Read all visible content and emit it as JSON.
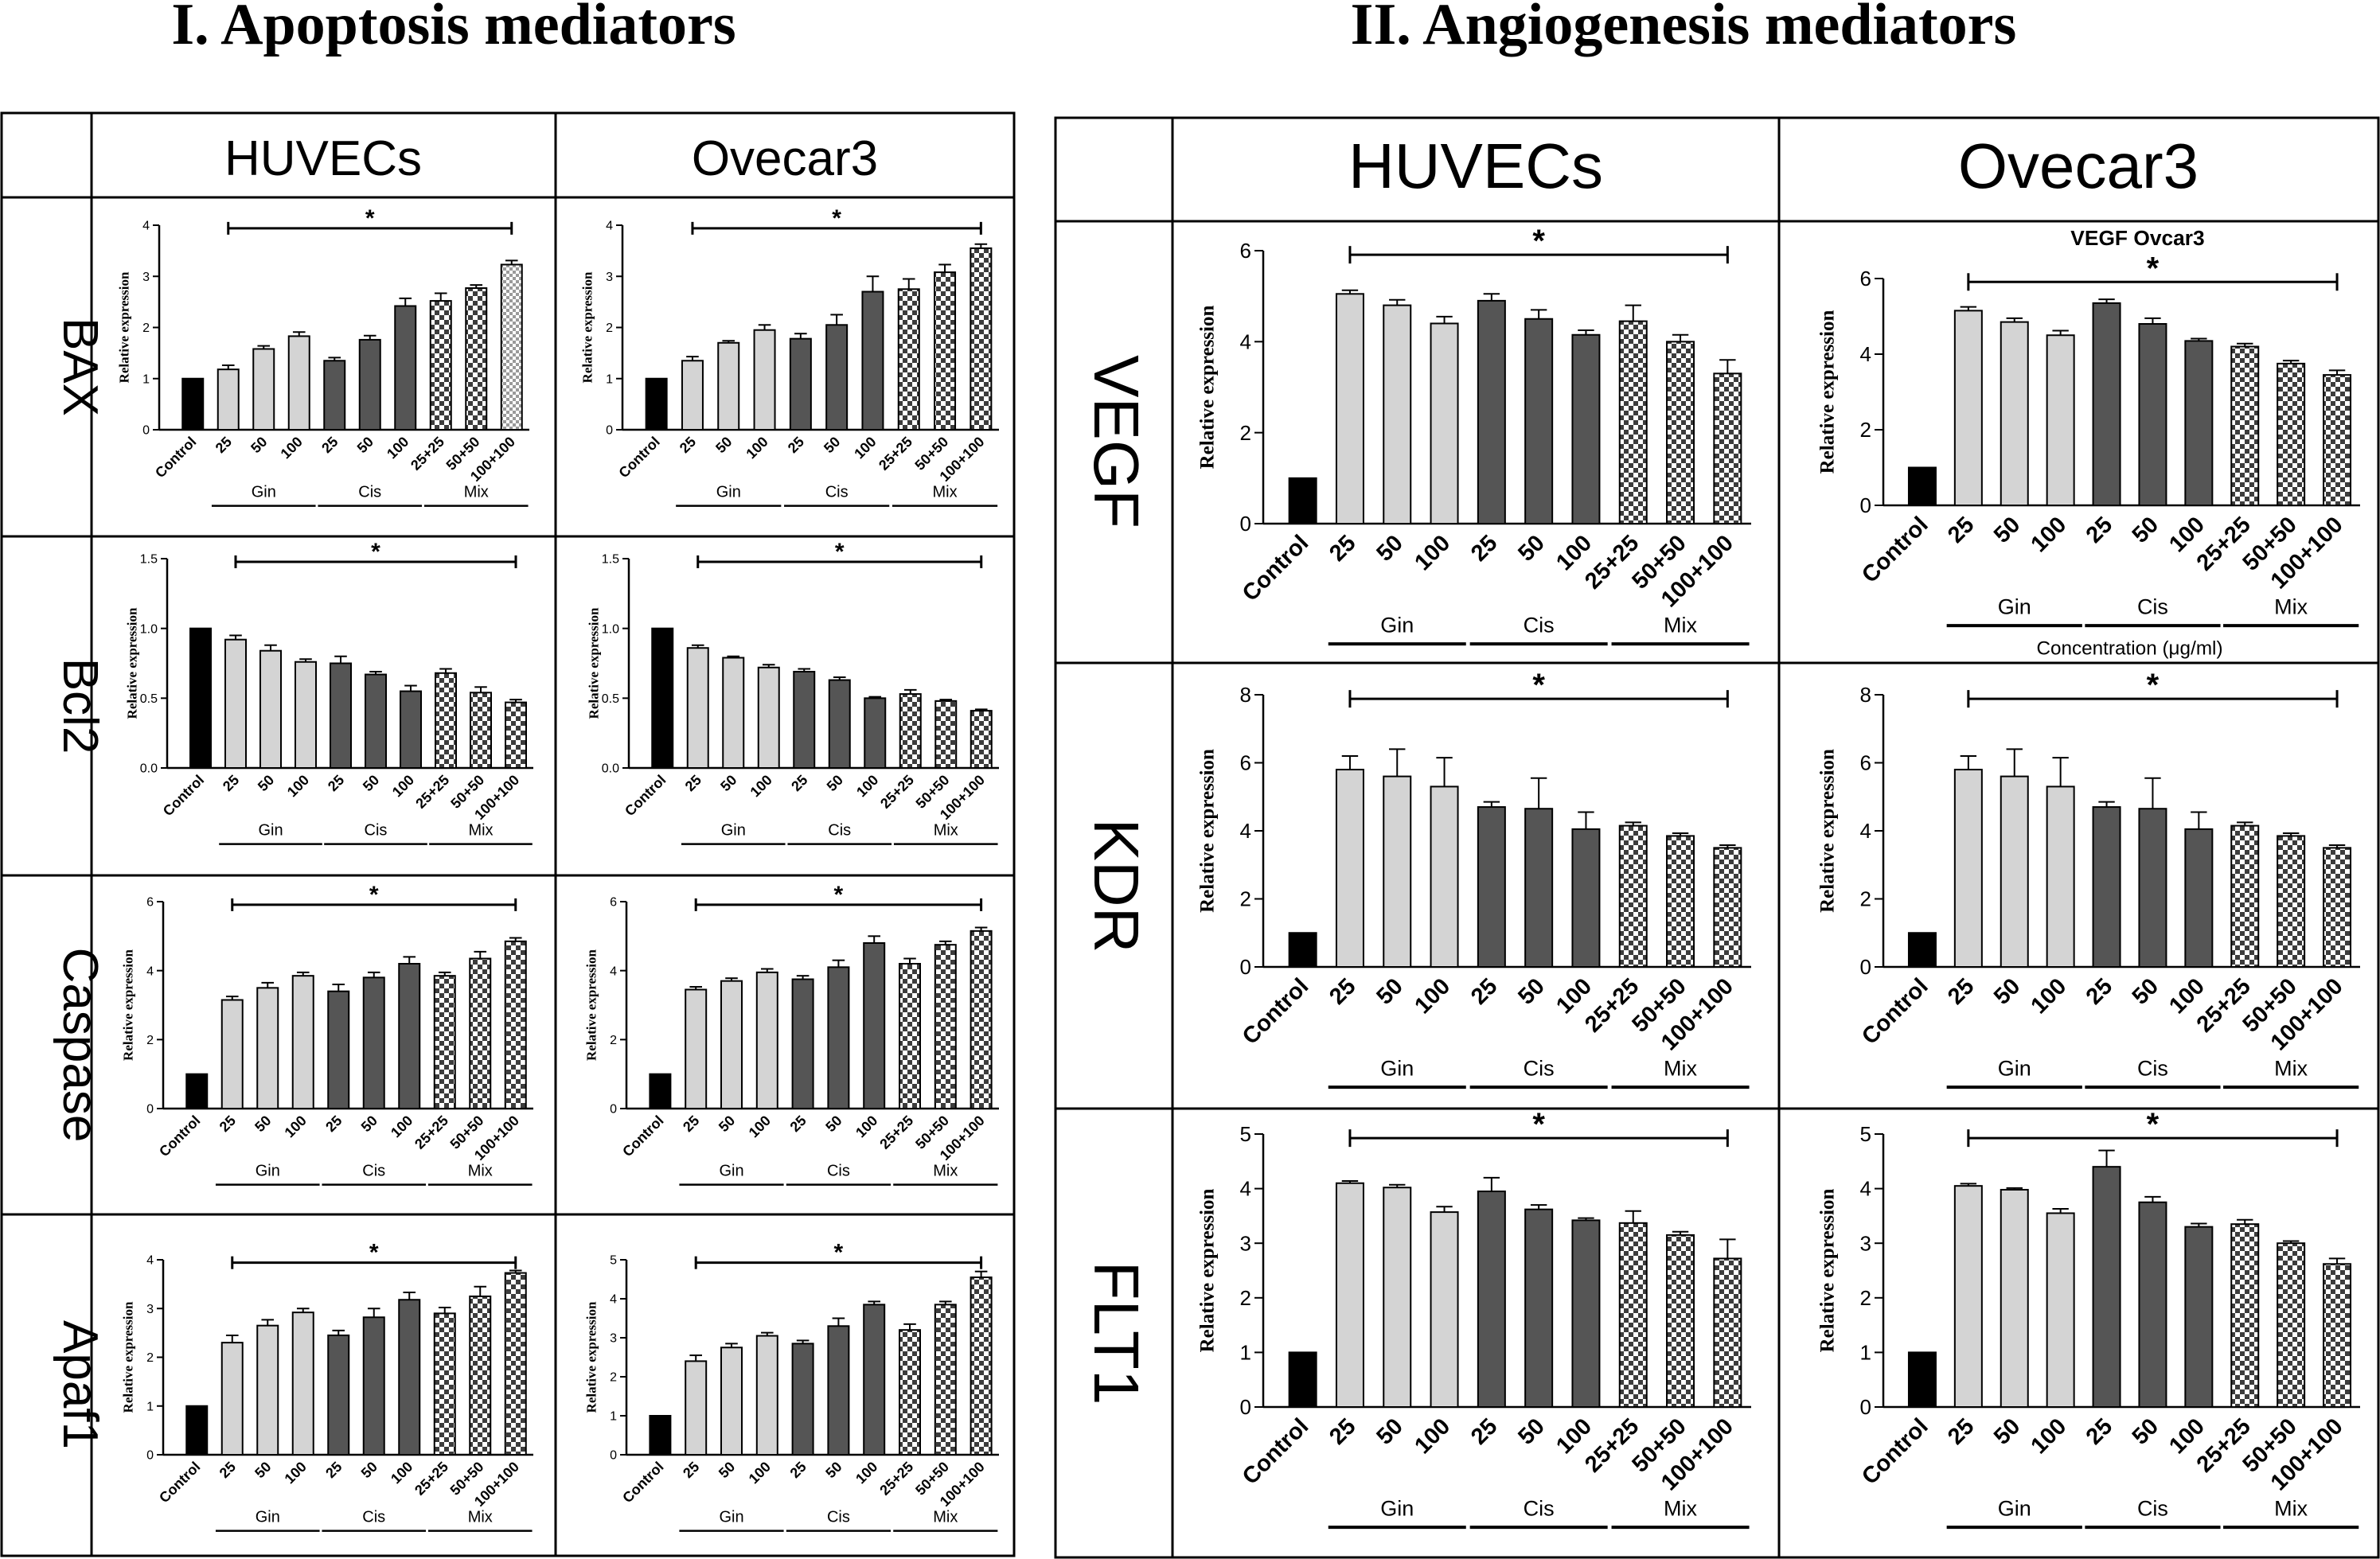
{
  "titles": {
    "left": "I. Apoptosis mediators",
    "right": "II. Angiogenesis mediators"
  },
  "left_table": {
    "col_headers": [
      "HUVECs",
      "Ovecar3"
    ],
    "row_labels": [
      "BAX",
      "Bcl2",
      "Caspase",
      "Apaf1"
    ]
  },
  "right_table": {
    "col_headers": [
      "HUVECs",
      "Ovecar3"
    ],
    "row_labels": [
      "VEGF",
      "KDR",
      "FLT1"
    ]
  },
  "colors": {
    "control": "#000000",
    "gin": "#d4d4d4",
    "cis": "#555555",
    "mix_dark": "#3c3c3c",
    "mix_light": "#ffffff"
  },
  "chart_data": [
    {
      "id": "bax_huvec",
      "type": "bar",
      "ylabel": "Relative expression",
      "ylim": [
        0,
        4
      ],
      "yticks": [
        "0",
        "1",
        "2",
        "3",
        "4"
      ],
      "categories": [
        "Control",
        "25",
        "50",
        "100",
        "25",
        "50",
        "100",
        "25+25",
        "50+50",
        "100+100"
      ],
      "groups": [
        "Gin",
        "Cis",
        "Mix"
      ],
      "significance": "*",
      "values": [
        1.0,
        1.18,
        1.58,
        1.83,
        1.35,
        1.76,
        2.42,
        2.52,
        2.77,
        3.23
      ],
      "errors": [
        0,
        0.08,
        0.06,
        0.08,
        0.06,
        0.08,
        0.15,
        0.15,
        0.06,
        0.08
      ]
    },
    {
      "id": "bax_ovecar",
      "type": "bar",
      "ylabel": "Relative expression",
      "ylim": [
        0,
        4
      ],
      "yticks": [
        "0",
        "1",
        "2",
        "3",
        "4"
      ],
      "categories": [
        "Control",
        "25",
        "50",
        "100",
        "25",
        "50",
        "100",
        "25+25",
        "50+50",
        "100+100"
      ],
      "groups": [
        "Gin",
        "Cis",
        "Mix"
      ],
      "significance": "*",
      "values": [
        1.0,
        1.35,
        1.7,
        1.95,
        1.78,
        2.05,
        2.7,
        2.75,
        3.08,
        3.55
      ],
      "errors": [
        0,
        0.08,
        0.04,
        0.1,
        0.1,
        0.2,
        0.3,
        0.2,
        0.15,
        0.08
      ]
    },
    {
      "id": "bcl2_huvec",
      "type": "bar",
      "ylabel": "Relative expression",
      "ylim": [
        0,
        1.5
      ],
      "yticks": [
        "0.0",
        "0.5",
        "1.0",
        "1.5"
      ],
      "categories": [
        "Control",
        "25",
        "50",
        "100",
        "25",
        "50",
        "100",
        "25+25",
        "50+50",
        "100+100"
      ],
      "groups": [
        "Gin",
        "Cis",
        "Mix"
      ],
      "significance": "*",
      "values": [
        1.0,
        0.92,
        0.84,
        0.76,
        0.75,
        0.67,
        0.55,
        0.68,
        0.54,
        0.47
      ],
      "errors": [
        0,
        0.03,
        0.04,
        0.02,
        0.05,
        0.02,
        0.04,
        0.03,
        0.04,
        0.02
      ]
    },
    {
      "id": "bcl2_ovecar",
      "type": "bar",
      "ylabel": "Relative expression",
      "ylim": [
        0,
        1.5
      ],
      "yticks": [
        "0.0",
        "0.5",
        "1.0",
        "1.5"
      ],
      "categories": [
        "Control",
        "25",
        "50",
        "100",
        "25",
        "50",
        "100",
        "25+25",
        "50+50",
        "100+100"
      ],
      "groups": [
        "Gin",
        "Cis",
        "Mix"
      ],
      "significance": "*",
      "values": [
        1.0,
        0.86,
        0.79,
        0.72,
        0.69,
        0.63,
        0.5,
        0.53,
        0.48,
        0.41
      ],
      "errors": [
        0,
        0.02,
        0.01,
        0.02,
        0.02,
        0.02,
        0.01,
        0.03,
        0.01,
        0.01
      ]
    },
    {
      "id": "casp_huvec",
      "type": "bar",
      "ylabel": "Relative expression",
      "ylim": [
        0,
        6
      ],
      "yticks": [
        "0",
        "2",
        "4",
        "6"
      ],
      "categories": [
        "Control",
        "25",
        "50",
        "100",
        "25",
        "50",
        "100",
        "25+25",
        "50+50",
        "100+100"
      ],
      "groups": [
        "Gin",
        "Cis",
        "Mix"
      ],
      "significance": "*",
      "values": [
        1.0,
        3.15,
        3.5,
        3.85,
        3.4,
        3.8,
        4.2,
        3.85,
        4.35,
        4.85
      ],
      "errors": [
        0,
        0.1,
        0.15,
        0.1,
        0.2,
        0.15,
        0.2,
        0.1,
        0.2,
        0.1
      ]
    },
    {
      "id": "casp_ovecar",
      "type": "bar",
      "ylabel": "Relative expression",
      "ylim": [
        0,
        6
      ],
      "yticks": [
        "0",
        "2",
        "4",
        "6"
      ],
      "categories": [
        "Control",
        "25",
        "50",
        "100",
        "25",
        "50",
        "100",
        "25+25",
        "50+50",
        "100+100"
      ],
      "groups": [
        "Gin",
        "Cis",
        "Mix"
      ],
      "significance": "*",
      "values": [
        1.0,
        3.45,
        3.7,
        3.95,
        3.75,
        4.1,
        4.8,
        4.2,
        4.75,
        5.15
      ],
      "errors": [
        0,
        0.08,
        0.08,
        0.1,
        0.1,
        0.2,
        0.2,
        0.15,
        0.1,
        0.1
      ]
    },
    {
      "id": "apaf_huvec",
      "type": "bar",
      "ylabel": "Relative expression",
      "ylim": [
        0,
        4
      ],
      "yticks": [
        "0",
        "1",
        "2",
        "3",
        "4"
      ],
      "categories": [
        "Control",
        "25",
        "50",
        "100",
        "25",
        "50",
        "100",
        "25+25",
        "50+50",
        "100+100"
      ],
      "groups": [
        "Gin",
        "Cis",
        "Mix"
      ],
      "significance": "*",
      "values": [
        1.0,
        2.3,
        2.65,
        2.92,
        2.45,
        2.82,
        3.18,
        2.9,
        3.25,
        3.73
      ],
      "errors": [
        0,
        0.15,
        0.12,
        0.08,
        0.1,
        0.18,
        0.15,
        0.12,
        0.2,
        0.05
      ]
    },
    {
      "id": "apaf_ovecar",
      "type": "bar",
      "ylabel": "Relative expression",
      "ylim": [
        0,
        5
      ],
      "yticks": [
        "0",
        "1",
        "2",
        "3",
        "4",
        "5"
      ],
      "categories": [
        "Control",
        "25",
        "50",
        "100",
        "25",
        "50",
        "100",
        "25+25",
        "50+50",
        "100+100"
      ],
      "groups": [
        "Gin",
        "Cis",
        "Mix"
      ],
      "significance": "*",
      "values": [
        1.0,
        2.4,
        2.75,
        3.05,
        2.85,
        3.3,
        3.85,
        3.2,
        3.85,
        4.55
      ],
      "errors": [
        0,
        0.15,
        0.1,
        0.08,
        0.08,
        0.2,
        0.08,
        0.15,
        0.08,
        0.15
      ]
    },
    {
      "id": "vegf_huvec",
      "type": "bar",
      "ylabel": "Relative expression",
      "ylim": [
        0,
        6
      ],
      "yticks": [
        "0",
        "2",
        "4",
        "6"
      ],
      "categories": [
        "Control",
        "25",
        "50",
        "100",
        "25",
        "50",
        "100",
        "25+25",
        "50+50",
        "100+100"
      ],
      "groups": [
        "Gin",
        "Cis",
        "Mix"
      ],
      "significance": "*",
      "values": [
        1.0,
        5.05,
        4.8,
        4.4,
        4.9,
        4.5,
        4.15,
        4.45,
        4.0,
        3.3
      ],
      "errors": [
        0,
        0.08,
        0.12,
        0.15,
        0.15,
        0.2,
        0.1,
        0.35,
        0.15,
        0.3
      ]
    },
    {
      "id": "vegf_ovecar",
      "type": "bar",
      "title": "VEGF Ovcar3",
      "xlabel": "Concentration (μg/ml)",
      "ylabel": "Relative expression",
      "ylim": [
        0,
        6
      ],
      "yticks": [
        "0",
        "2",
        "4",
        "6"
      ],
      "categories": [
        "Control",
        "25",
        "50",
        "100",
        "25",
        "50",
        "100",
        "25+25",
        "50+50",
        "100+100"
      ],
      "groups": [
        "Gin",
        "Cis",
        "Mix"
      ],
      "significance": "*",
      "values": [
        1.0,
        5.15,
        4.85,
        4.5,
        5.35,
        4.8,
        4.35,
        4.2,
        3.75,
        3.45
      ],
      "errors": [
        0,
        0.1,
        0.1,
        0.12,
        0.1,
        0.15,
        0.06,
        0.08,
        0.08,
        0.12
      ]
    },
    {
      "id": "kdr_huvec",
      "type": "bar",
      "ylabel": "Relative expression",
      "ylim": [
        0,
        8
      ],
      "yticks": [
        "0",
        "2",
        "4",
        "6",
        "8"
      ],
      "categories": [
        "Control",
        "25",
        "50",
        "100",
        "25",
        "50",
        "100",
        "25+25",
        "50+50",
        "100+100"
      ],
      "groups": [
        "Gin",
        "Cis",
        "Mix"
      ],
      "significance": "*",
      "values": [
        1.0,
        5.8,
        5.6,
        5.3,
        4.7,
        4.65,
        4.05,
        4.15,
        3.85,
        3.5
      ],
      "errors": [
        0,
        0.4,
        0.8,
        0.85,
        0.15,
        0.9,
        0.5,
        0.1,
        0.08,
        0.08
      ]
    },
    {
      "id": "kdr_ovecar",
      "type": "bar",
      "ylabel": "Relative expression",
      "ylim": [
        0,
        8
      ],
      "yticks": [
        "0",
        "2",
        "4",
        "6",
        "8"
      ],
      "categories": [
        "Control",
        "25",
        "50",
        "100",
        "25",
        "50",
        "100",
        "25+25",
        "50+50",
        "100+100"
      ],
      "groups": [
        "Gin",
        "Cis",
        "Mix"
      ],
      "significance": "*",
      "values": [
        1.0,
        5.8,
        5.6,
        5.3,
        4.7,
        4.65,
        4.05,
        4.15,
        3.85,
        3.5
      ],
      "errors": [
        0,
        0.4,
        0.8,
        0.85,
        0.15,
        0.9,
        0.5,
        0.1,
        0.08,
        0.08
      ]
    },
    {
      "id": "flt1_huvec",
      "type": "bar",
      "ylabel": "Relative expression",
      "ylim": [
        0,
        5
      ],
      "yticks": [
        "0",
        "1",
        "2",
        "3",
        "4",
        "5"
      ],
      "categories": [
        "Control",
        "25",
        "50",
        "100",
        "25",
        "50",
        "100",
        "25+25",
        "50+50",
        "100+100"
      ],
      "groups": [
        "Gin",
        "Cis",
        "Mix"
      ],
      "significance": "*",
      "values": [
        1.0,
        4.1,
        4.02,
        3.57,
        3.95,
        3.62,
        3.42,
        3.37,
        3.15,
        2.72
      ],
      "errors": [
        0,
        0.04,
        0.05,
        0.1,
        0.25,
        0.08,
        0.04,
        0.22,
        0.06,
        0.35
      ]
    },
    {
      "id": "flt1_ovecar",
      "type": "bar",
      "ylabel": "Relative expression",
      "ylim": [
        0,
        5
      ],
      "yticks": [
        "0",
        "1",
        "2",
        "3",
        "4",
        "5"
      ],
      "categories": [
        "Control",
        "25",
        "50",
        "100",
        "25",
        "50",
        "100",
        "25+25",
        "50+50",
        "100+100"
      ],
      "groups": [
        "Gin",
        "Cis",
        "Mix"
      ],
      "significance": "*",
      "values": [
        1.0,
        4.05,
        3.98,
        3.55,
        4.4,
        3.75,
        3.3,
        3.35,
        3.0,
        2.62
      ],
      "errors": [
        0,
        0.04,
        0.03,
        0.08,
        0.3,
        0.1,
        0.06,
        0.08,
        0.04,
        0.1
      ]
    }
  ]
}
